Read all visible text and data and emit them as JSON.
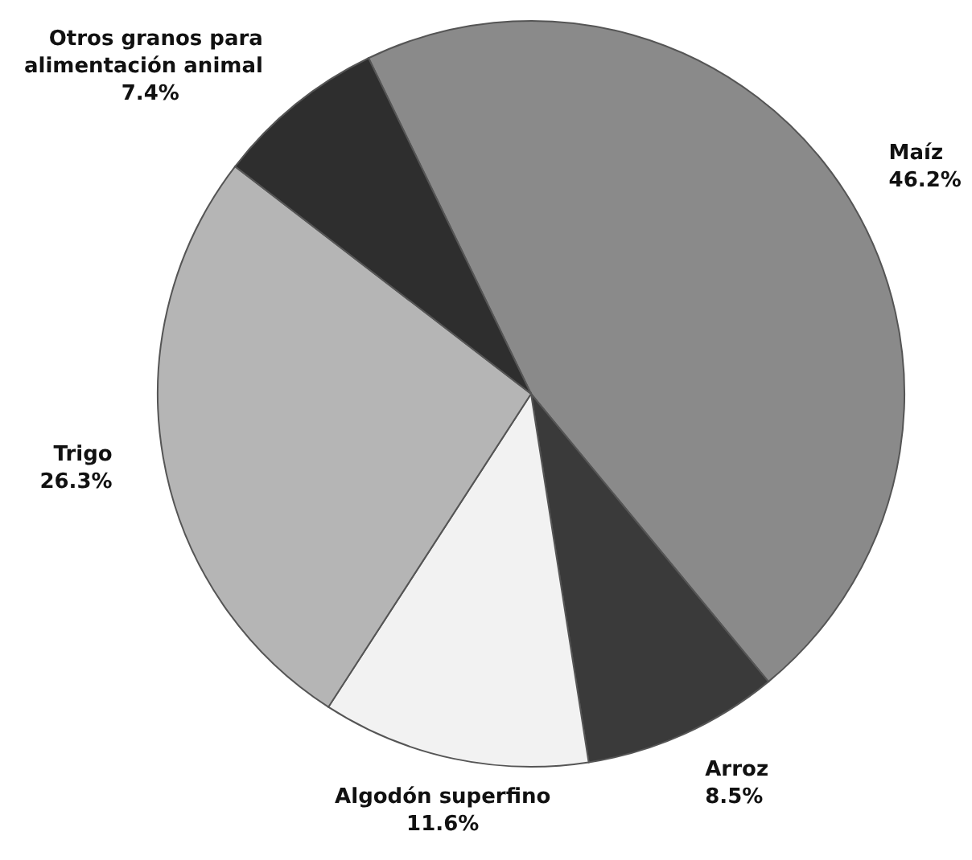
{
  "chart_data": {
    "type": "pie",
    "categories": [
      "Maíz",
      "Arroz",
      "Algodón superfino",
      "Trigo",
      "Otros granos para alimentación animal"
    ],
    "values": [
      46.2,
      8.5,
      11.6,
      26.3,
      7.4
    ],
    "value_labels": [
      "46.2%",
      "8.5%",
      "11.6%",
      "26.3%",
      "7.4%"
    ],
    "colors": [
      "#8a8a8a",
      "#3a3a3a",
      "#f2f2f2",
      "#b5b5b5",
      "#2e2e2e"
    ]
  }
}
